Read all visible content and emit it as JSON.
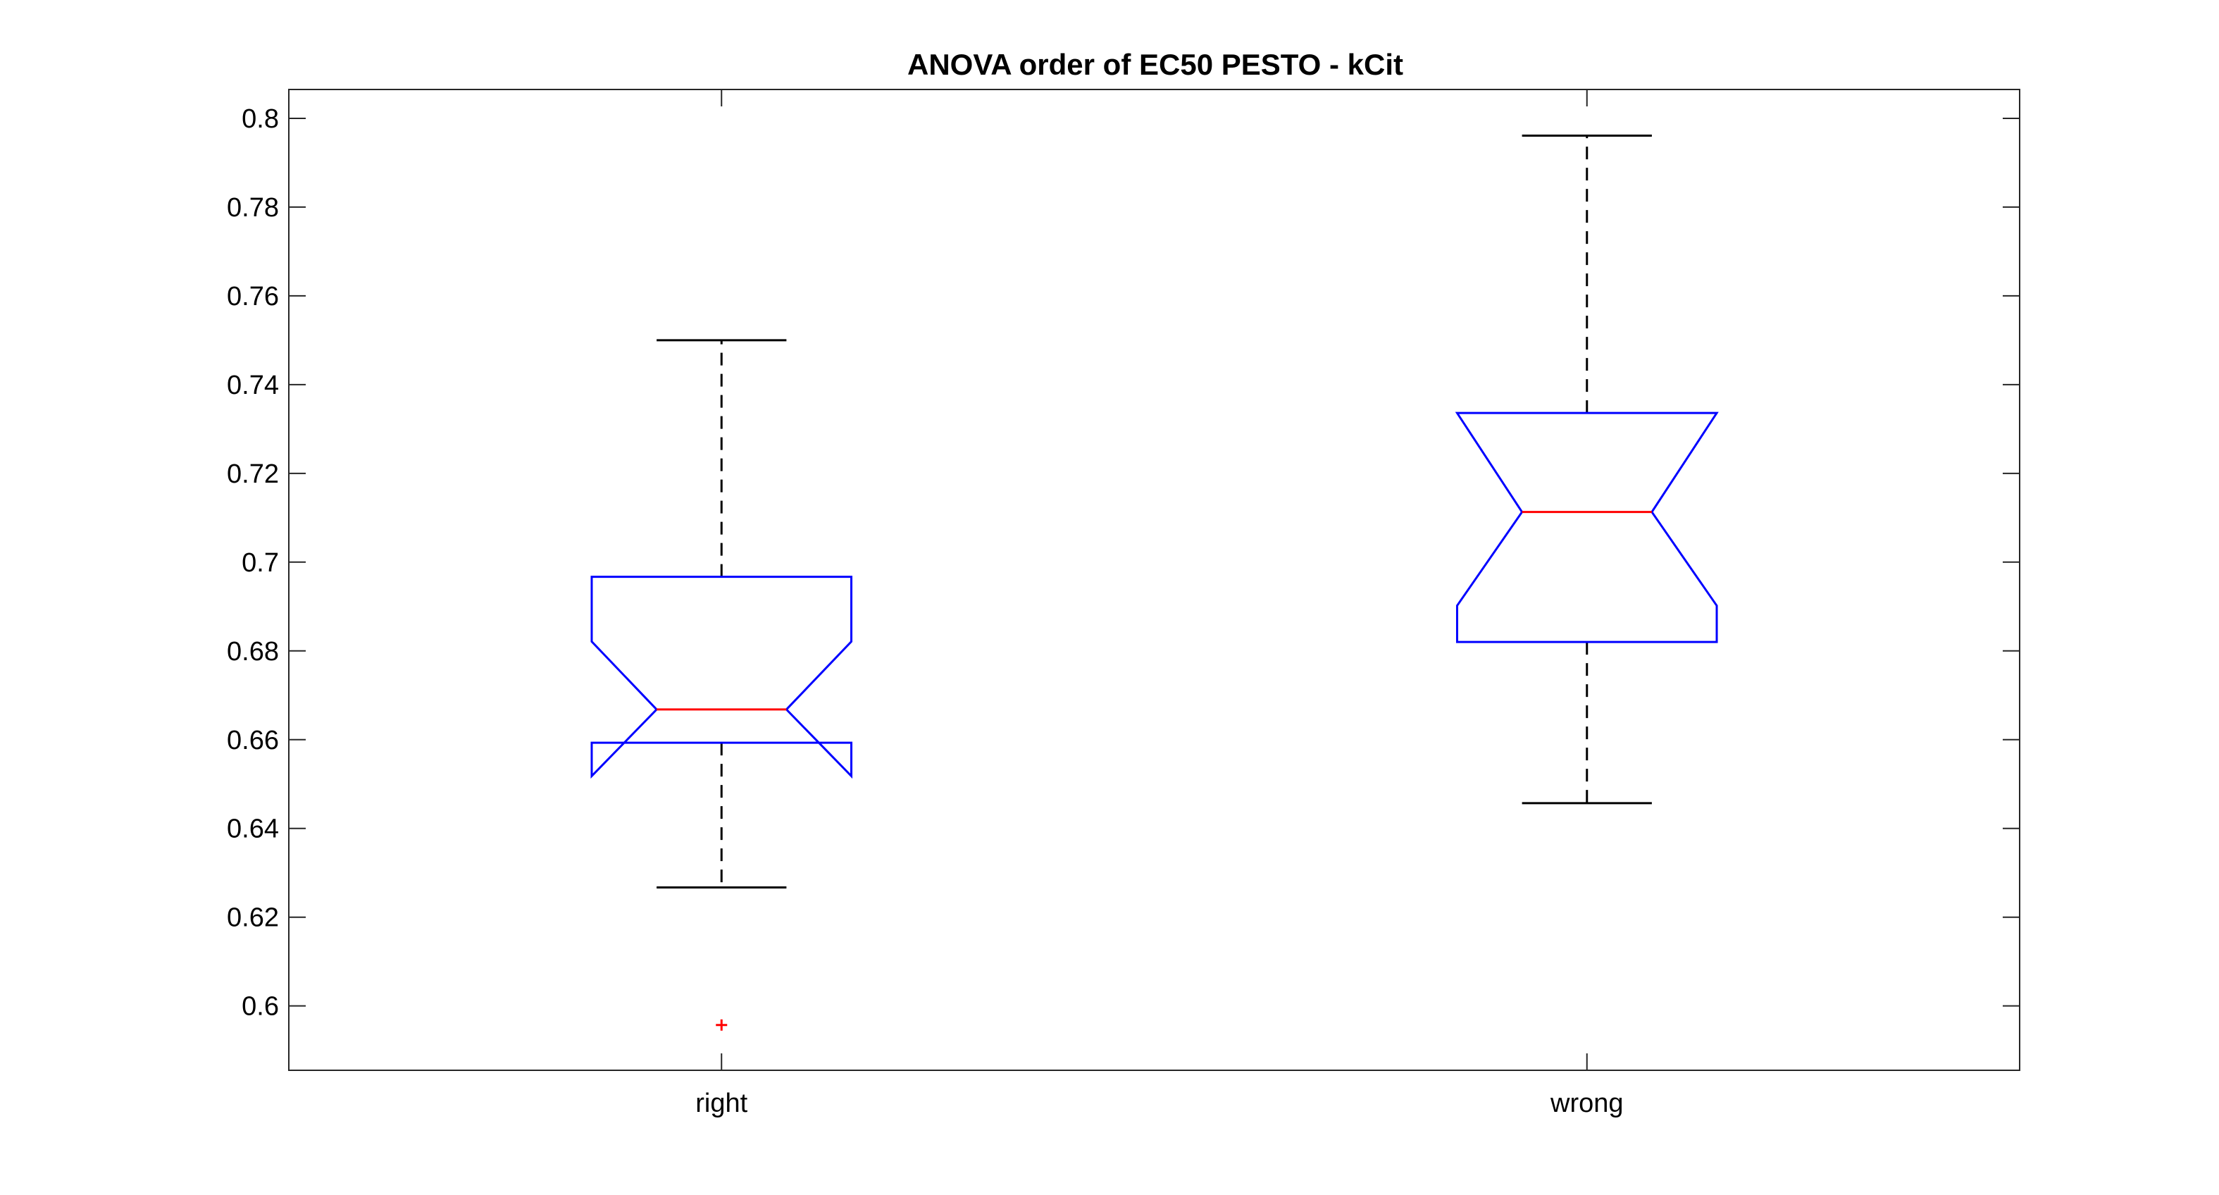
{
  "chart_data": {
    "type": "box",
    "title": "ANOVA order of EC50 PESTO - kCit",
    "xlabel": "",
    "ylabel": "",
    "ylim": [
      0.5855,
      0.8065
    ],
    "yticks": [
      "0.6",
      "0.62",
      "0.64",
      "0.66",
      "0.68",
      "0.7",
      "0.72",
      "0.74",
      "0.76",
      "0.78",
      "0.8"
    ],
    "notched": true,
    "categories": [
      "right",
      "wrong"
    ],
    "boxes": [
      {
        "category": "right",
        "whisker_low": 0.6267,
        "q1": 0.6593,
        "notch_low": 0.6518,
        "median": 0.6668,
        "notch_high": 0.6821,
        "q3": 0.6967,
        "whisker_high": 0.75,
        "outliers": [
          0.5957
        ]
      },
      {
        "category": "wrong",
        "whisker_low": 0.6457,
        "q1": 0.682,
        "notch_low": 0.6902,
        "median": 0.7113,
        "notch_high": 0.7336,
        "q3": 0.7336,
        "whisker_high": 0.7961,
        "outliers": []
      }
    ],
    "colors": {
      "box": "#0000ff",
      "median": "#ff0000",
      "whisker": "#000000",
      "outlier": "#ff0000",
      "axis": "#262626"
    },
    "grid": false,
    "legend": "none"
  }
}
